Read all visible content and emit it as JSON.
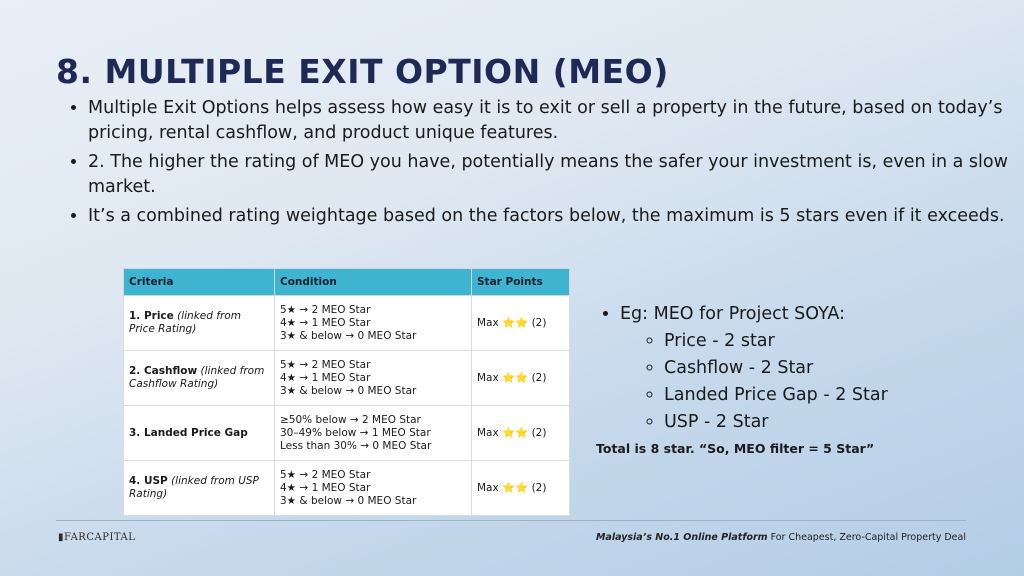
{
  "title": "8. MULTIPLE EXIT OPTION (MEO)",
  "bullets": [
    "Multiple Exit Options helps assess how easy it is to exit or sell a property in the future, based on today’s pricing, rental cashflow, and product unique features.",
    "2. The higher the rating of MEO you have, potentially means the safer your investment is, even in a slow market.",
    "It’s a combined rating weightage based on the factors below, the maximum is 5 stars even if it exceeds."
  ],
  "table": {
    "headers": [
      "Criteria",
      "Condition",
      "Star Points"
    ],
    "rows": [
      {
        "name": "1. Price",
        "sub": "(linked from Price Rating)",
        "conditions": [
          "5★ → 2 MEO Star",
          "4★ → 1 MEO Star",
          "3★ & below → 0 MEO Star"
        ],
        "points_prefix": "Max",
        "points_stars": "⭐⭐",
        "points_suffix": "(2)"
      },
      {
        "name": "2. Cashflow",
        "sub": "(linked from Cashflow Rating)",
        "conditions": [
          "5★ → 2 MEO Star",
          "4★ → 1 MEO Star",
          "3★ & below → 0 MEO Star"
        ],
        "points_prefix": "Max",
        "points_stars": "⭐⭐",
        "points_suffix": "(2)"
      },
      {
        "name": "3. Landed Price Gap",
        "sub": "",
        "conditions": [
          "≥50% below → 2 MEO Star",
          "30–49% below → 1 MEO Star",
          "Less than 30% → 0 MEO Star"
        ],
        "points_prefix": "Max",
        "points_stars": "⭐⭐",
        "points_suffix": "(2)"
      },
      {
        "name": "4. USP",
        "sub": "(linked from USP Rating)",
        "conditions": [
          "5★ → 2 MEO Star",
          "4★ → 1 MEO Star",
          "3★ & below → 0 MEO Star"
        ],
        "points_prefix": "Max",
        "points_stars": "⭐⭐",
        "points_suffix": "(2)"
      }
    ]
  },
  "example": {
    "heading": "Eg: MEO for Project SOYA:",
    "items": [
      "Price - 2 star",
      "Cashflow - 2 Star",
      "Landed Price Gap - 2 Star",
      "USP - 2 Star"
    ],
    "total": "Total is 8 star. “So, MEO filter = 5 Star”"
  },
  "footer": {
    "logo": "FARCAPITAL",
    "tagline_bold": "Malaysia’s No.1 Online Platform",
    "tagline_rest": " For Cheapest, Zero-Capital Property Deal"
  },
  "colors": {
    "title": "#1e2a55",
    "table_header": "#3fb4d1"
  }
}
